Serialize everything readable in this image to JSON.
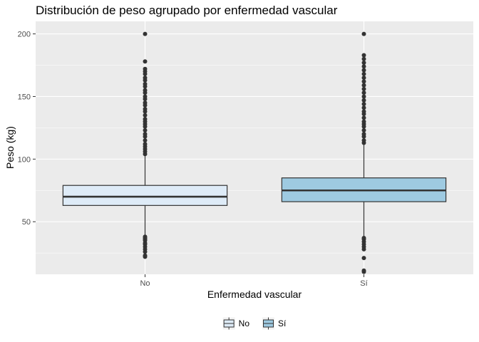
{
  "chart_data": {
    "type": "boxplot",
    "title": "Distribución de peso agrupado por enfermedad vascular",
    "xlabel": "Enfermedad vascular",
    "ylabel": "Peso (kg)",
    "ylim": [
      8,
      210
    ],
    "yticks": [
      50,
      100,
      150,
      200
    ],
    "grid": true,
    "legend_position": "bottom",
    "categories": [
      "No",
      "Sí"
    ],
    "boxes": [
      {
        "name": "No",
        "color": "#deebf7",
        "whisker_low": 39,
        "q1": 63,
        "median": 70,
        "q3": 79,
        "whisker_high": 103,
        "outliers": [
          22,
          23,
          26,
          28,
          30,
          32,
          33,
          35,
          36,
          37,
          38,
          104,
          106,
          108,
          110,
          112,
          115,
          118,
          120,
          123,
          126,
          128,
          130,
          132,
          135,
          138,
          140,
          143,
          145,
          148,
          150,
          153,
          155,
          158,
          160,
          163,
          165,
          168,
          170,
          172,
          178,
          200
        ]
      },
      {
        "name": "Sí",
        "color": "#9ecae1",
        "whisker_low": 38,
        "q1": 66,
        "median": 75,
        "q3": 85,
        "whisker_high": 112,
        "outliers": [
          10,
          11,
          21,
          28,
          30,
          32,
          34,
          36,
          37,
          113,
          115,
          118,
          120,
          123,
          126,
          128,
          130,
          133,
          136,
          138,
          141,
          144,
          147,
          150,
          153,
          156,
          159,
          162,
          165,
          168,
          171,
          174,
          177,
          180,
          183,
          200
        ]
      }
    ],
    "colors": {
      "panel_background": "#ebebeb",
      "grid_line": "#ffffff",
      "box_outline": "#333333",
      "outlier": "#333333"
    }
  }
}
